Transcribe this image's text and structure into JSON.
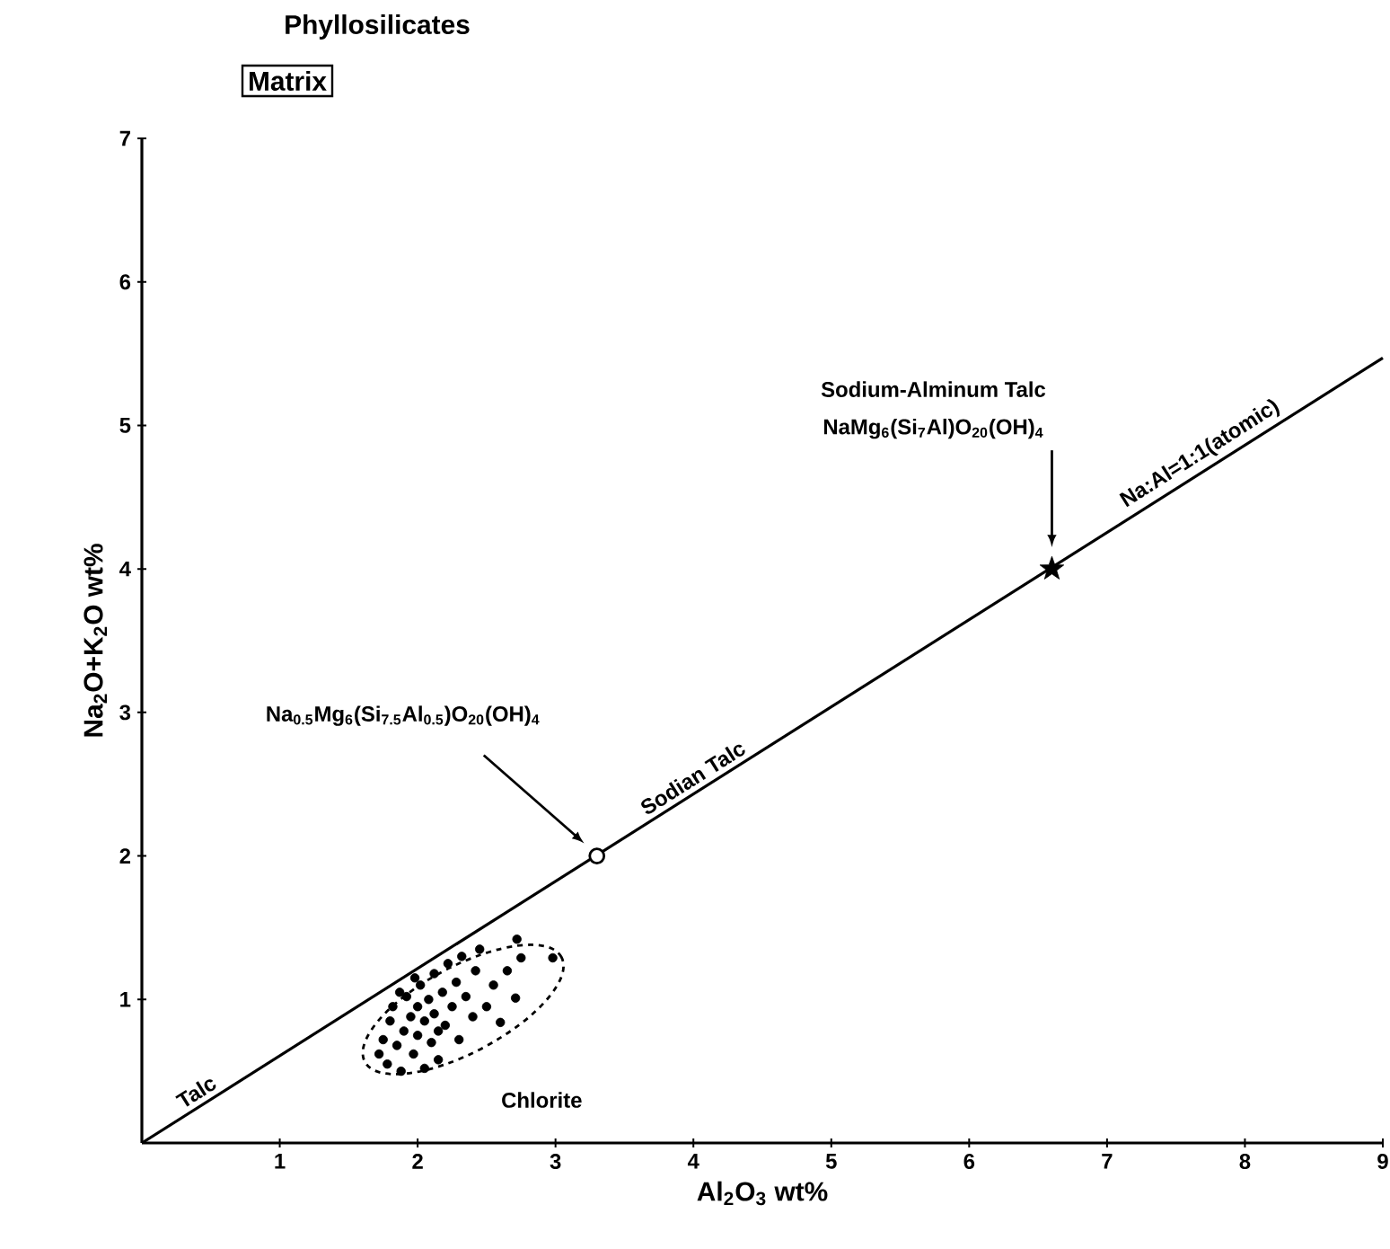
{
  "chart_data": {
    "type": "scatter",
    "title": "Phyllosilicates",
    "subtitle": "Matrix",
    "xlabel": "Al$_{2}$O$_{3}$ wt%",
    "ylabel": "Na$_{2}$O+K$_{2}$O wt%",
    "xlim": [
      0,
      9
    ],
    "ylim": [
      0,
      7
    ],
    "xticks": [
      1,
      2,
      3,
      4,
      5,
      6,
      7,
      8,
      9
    ],
    "yticks": [
      1,
      2,
      3,
      4,
      5,
      6,
      7
    ],
    "series": [
      {
        "type": "line",
        "color": "#000000",
        "marker": "none",
        "x": [
          0,
          9
        ],
        "values": [
          0,
          5.47
        ]
      },
      {
        "color": "#000000",
        "marker": "circle",
        "x": [
          1.72,
          1.75,
          1.78,
          1.8,
          1.82,
          1.85,
          1.88,
          1.9,
          1.92,
          1.95,
          1.97,
          2.0,
          2.0,
          2.02,
          2.05,
          2.05,
          2.08,
          2.1,
          2.12,
          2.12,
          2.15,
          2.18,
          2.2,
          2.22,
          2.25,
          2.28,
          2.3,
          2.32,
          2.35,
          2.4,
          2.42,
          2.45,
          2.5,
          2.55,
          2.6,
          2.65,
          2.72,
          2.75,
          2.71,
          2.98,
          1.98,
          1.87,
          2.15
        ],
        "values": [
          0.62,
          0.72,
          0.55,
          0.85,
          0.95,
          0.68,
          0.5,
          0.78,
          1.02,
          0.88,
          0.62,
          0.95,
          0.75,
          1.1,
          0.52,
          0.85,
          1.0,
          0.7,
          0.9,
          1.18,
          0.58,
          1.05,
          0.82,
          1.25,
          0.95,
          1.12,
          0.72,
          1.3,
          1.02,
          0.88,
          1.2,
          1.35,
          0.95,
          1.1,
          0.84,
          1.2,
          1.42,
          1.29,
          1.01,
          1.29,
          1.15,
          1.05,
          0.78
        ]
      },
      {
        "color": "#000000",
        "marker": "circle",
        "x": [
          3.3
        ],
        "values": [
          2.0
        ]
      },
      {
        "color": "#000000",
        "marker": "star",
        "x": [
          6.6
        ],
        "values": [
          4.0
        ]
      }
    ],
    "annotations": [
      "Na$_{0.5}$Mg$_{6}$(Si$_{7.5}$Al$_{0.5}$)O$_{20}$(OH)$_{4}$",
      "Sodium-Alminum Talc",
      "NaMg$_{6}$(Si$_{7}$Al)O$_{20}$(OH)$_{4}$",
      "Sodian Talc",
      "Na:Al=1:1(atomic)",
      "Talc",
      "Chlorite"
    ]
  }
}
